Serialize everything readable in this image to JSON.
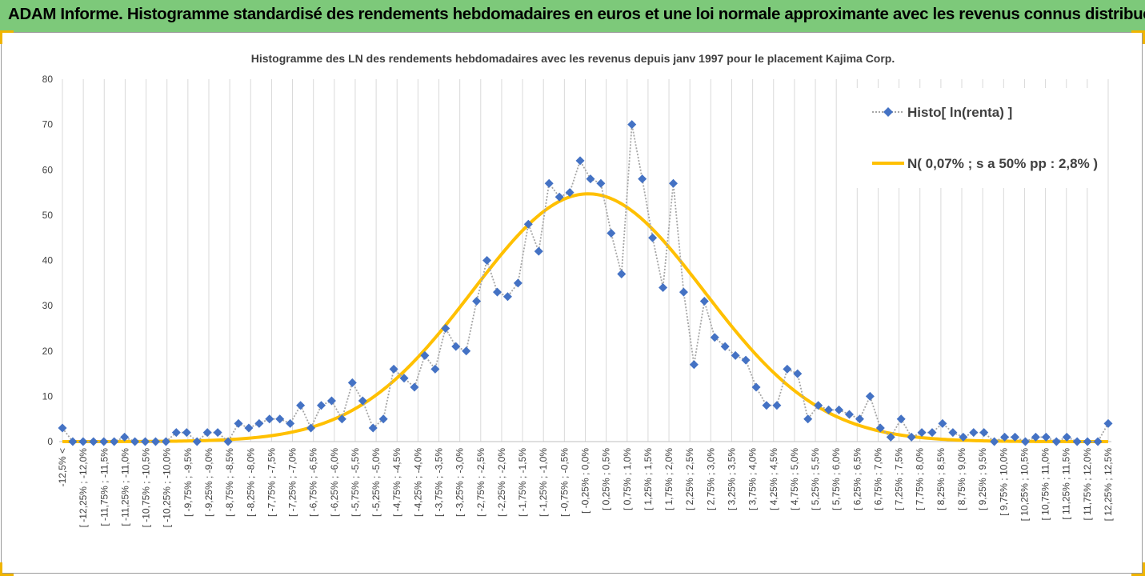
{
  "banner": {
    "title": "ADAM Informe. Histogramme standardisé des rendements hebdomadaires en euros et une loi normale approximante avec les revenus connus distribués",
    "color": "#7dc97a"
  },
  "chart_data": {
    "type": "line",
    "title": "Histogramme des LN des rendements hebdomadaires avec les revenus depuis janv 1997 pour le placement Kajima Corp.",
    "ylim": [
      0,
      80
    ],
    "yticks": [
      0,
      10,
      20,
      30,
      40,
      50,
      60,
      70,
      80
    ],
    "grid": "vertical",
    "legend_position": "top-right",
    "x_tick_labels": [
      "-12,5% <",
      "[ -12,25% ; -12,0%",
      "[ -11,75% ; -11,5%",
      "[ -11,25% ; -11,0%",
      "[ -10,75% ; -10,5%",
      "[ -10,25% ; -10,0%",
      "[ -9,75% ; -9,5%",
      "[ -9,25% ; -9,0%",
      "[ -8,75% ; -8,5%",
      "[ -8,25% ; -8,0%",
      "[ -7,75% ; -7,5%",
      "[ -7,25% ; -7,0%",
      "[ -6,75% ; -6,5%",
      "[ -6,25% ; -6,0%",
      "[ -5,75% ; -5,5%",
      "[ -5,25% ; -5,0%",
      "[ -4,75% ; -4,5%",
      "[ -4,25% ; -4,0%",
      "[ -3,75% ; -3,5%",
      "[ -3,25% ; -3,0%",
      "[ -2,75% ; -2,5%",
      "[ -2,25% ; -2,0%",
      "[ -1,75% ; -1,5%",
      "[ -1,25% ; -1,0%",
      "[ -0,75% ; -0,5%",
      "[ -0,25% ; 0,0%",
      "[ 0,25% ; 0,5%",
      "[ 0,75% ; 1,0%",
      "[ 1,25% ; 1,5%",
      "[ 1,75% ; 2,0%",
      "[ 2,25% ; 2,5%",
      "[ 2,75% ; 3,0%",
      "[ 3,25% ; 3,5%",
      "[ 3,75% ; 4,0%",
      "[ 4,25% ; 4,5%",
      "[ 4,75% ; 5,0%",
      "[ 5,25% ; 5,5%",
      "[ 5,75% ; 6,0%",
      "[ 6,25% ; 6,5%",
      "[ 6,75% ; 7,0%",
      "[ 7,25% ; 7,5%",
      "[ 7,75% ; 8,0%",
      "[ 8,25% ; 8,5%",
      "[ 8,75% ; 9,0%",
      "[ 9,25% ; 9,5%",
      "[ 9,75% ; 10,0%",
      "[ 10,25% ; 10,5%",
      "[ 10,75% ; 11,0%",
      "[ 11,25% ; 11,5%",
      "[ 11,75% ; 12,0%",
      "[ 12,25% ; 12,5%"
    ],
    "series": [
      {
        "name": "Histo[ ln(renta) ]",
        "style": "dotted-line-diamond-markers",
        "color": "#4472c4",
        "line_color": "#a6a6a6",
        "values": [
          3,
          0,
          0,
          0,
          0,
          0,
          1,
          0,
          0,
          0,
          0,
          2,
          2,
          0,
          2,
          2,
          0,
          4,
          3,
          4,
          5,
          5,
          4,
          8,
          3,
          8,
          9,
          5,
          13,
          9,
          3,
          5,
          16,
          14,
          12,
          19,
          16,
          25,
          21,
          20,
          31,
          40,
          33,
          32,
          35,
          48,
          42,
          57,
          54,
          55,
          62,
          58,
          57,
          46,
          37,
          70,
          58,
          45,
          34,
          57,
          33,
          17,
          31,
          23,
          21,
          19,
          18,
          12,
          8,
          8,
          16,
          15,
          5,
          8,
          7,
          7,
          6,
          5,
          10,
          3,
          1,
          5,
          1,
          2,
          2,
          4,
          2,
          1,
          2,
          2,
          0,
          1,
          1,
          0,
          1,
          1,
          0,
          1,
          0,
          0,
          0,
          4
        ]
      },
      {
        "name": "N( 0,07% ; s a 50% pp : 2,8% )",
        "style": "smooth-line",
        "color": "#ffc000",
        "distribution": {
          "mean_percent": 0.07,
          "sd_percent": 2.8,
          "peak": 54.7
        }
      }
    ]
  }
}
